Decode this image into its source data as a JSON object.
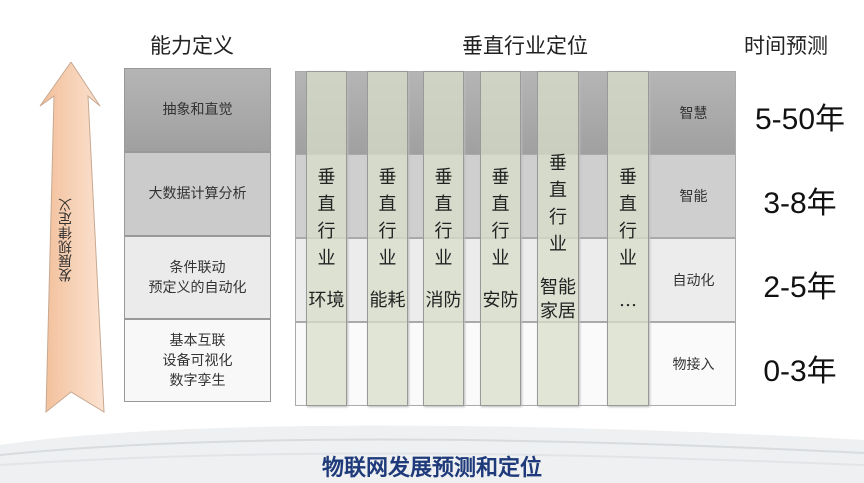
{
  "headers": {
    "capability": "能力定义",
    "vertical": "垂直行业定位",
    "time": "时间预测"
  },
  "arrow_label": "发展规律定义",
  "capabilities": [
    "抽象和直觉",
    "大数据计算分析",
    "条件联动\n预定义的自动化",
    "基本互联\n设备可视化\n数字孪生"
  ],
  "levels": [
    "智慧",
    "智能",
    "自动化",
    "物接入"
  ],
  "verticals": [
    {
      "label": "垂\n直\n行\n业",
      "name": "环境"
    },
    {
      "label": "垂\n直\n行\n业",
      "name": "能耗"
    },
    {
      "label": "垂\n直\n行\n业",
      "name": "消防"
    },
    {
      "label": "垂\n直\n行\n业",
      "name": "安防"
    },
    {
      "label": "垂\n直\n行\n业",
      "name": "智能\n家居"
    },
    {
      "label": "垂\n直\n行\n业",
      "name": "…"
    }
  ],
  "times": [
    "5-50年",
    "3-8年",
    "2-5年",
    "0-3年"
  ],
  "footer_title": "物联网发展预测和定位",
  "colors": {
    "row1": "#a6a6a6",
    "row2": "#cfcfcf",
    "row3": "#ececec",
    "row4": "#fafafa",
    "column": "#d7dec8",
    "arrow": "#f4c9a8",
    "title": "#1f3a7a"
  }
}
